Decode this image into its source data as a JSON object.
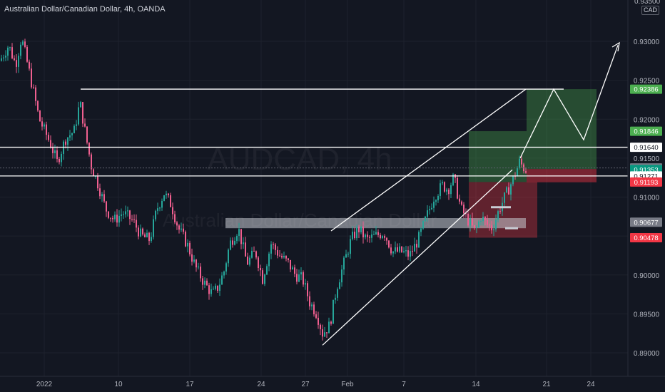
{
  "header": {
    "title": "Australian Dollar/Canadian Dollar, 4h, OANDA",
    "currency": "CAD",
    "top_cut_tick": "0.93500"
  },
  "watermark": {
    "symbol": "AUDCAD, 4h",
    "name": "Australian Dollar/Canadian Dollar"
  },
  "colors": {
    "background": "#131722",
    "up_candle": "#26a69a",
    "down_candle": "#ef5f8f",
    "lines": "#ffffff",
    "target_zone": "#4caf50",
    "stop_zone": "#f23645",
    "level_zone": "#c9ccd4",
    "badge_green": "#4caf50",
    "badge_red": "#f23645",
    "badge_gray": "#787b86",
    "badge_teal": "#089981"
  },
  "chart_data": {
    "type": "candlestick",
    "symbol": "AUDCAD",
    "timeframe": "4h",
    "ylim": [
      0.8875,
      0.935
    ],
    "y_ticks": [
      "0.89000",
      "0.89500",
      "0.90000",
      "0.90500",
      "0.91000",
      "0.91500",
      "0.92000",
      "0.92500",
      "0.93000"
    ],
    "x_ticks": [
      "2022",
      "10",
      "17",
      "24",
      "27",
      "Feb",
      "7",
      "14",
      "21",
      "24"
    ],
    "price_path": [
      [
        0,
        0.9275
      ],
      [
        12,
        0.9295
      ],
      [
        22,
        0.927
      ],
      [
        30,
        0.9305
      ],
      [
        40,
        0.9265
      ],
      [
        55,
        0.92
      ],
      [
        70,
        0.917
      ],
      [
        80,
        0.9145
      ],
      [
        92,
        0.9175
      ],
      [
        104,
        0.9185
      ],
      [
        112,
        0.9222
      ],
      [
        120,
        0.918
      ],
      [
        128,
        0.914
      ],
      [
        138,
        0.9115
      ],
      [
        148,
        0.9085
      ],
      [
        160,
        0.907
      ],
      [
        172,
        0.908
      ],
      [
        186,
        0.907
      ],
      [
        198,
        0.905
      ],
      [
        210,
        0.9045
      ],
      [
        220,
        0.9085
      ],
      [
        230,
        0.9105
      ],
      [
        240,
        0.909
      ],
      [
        250,
        0.906
      ],
      [
        262,
        0.904
      ],
      [
        274,
        0.901
      ],
      [
        286,
        0.899
      ],
      [
        298,
        0.8975
      ],
      [
        306,
        0.8985
      ],
      [
        314,
        0.9005
      ],
      [
        322,
        0.904
      ],
      [
        334,
        0.906
      ],
      [
        346,
        0.9015
      ],
      [
        358,
        0.903
      ],
      [
        368,
        0.8995
      ],
      [
        380,
        0.904
      ],
      [
        392,
        0.9025
      ],
      [
        404,
        0.9015
      ],
      [
        414,
        0.9
      ],
      [
        424,
        0.8995
      ],
      [
        434,
        0.8965
      ],
      [
        444,
        0.895
      ],
      [
        452,
        0.8925
      ],
      [
        462,
        0.8935
      ],
      [
        472,
        0.8985
      ],
      [
        482,
        0.9015
      ],
      [
        492,
        0.9045
      ],
      [
        502,
        0.906
      ],
      [
        514,
        0.9045
      ],
      [
        526,
        0.905
      ],
      [
        538,
        0.9055
      ],
      [
        550,
        0.903
      ],
      [
        562,
        0.903
      ],
      [
        574,
        0.9025
      ],
      [
        586,
        0.9045
      ],
      [
        598,
        0.9075
      ],
      [
        608,
        0.91
      ],
      [
        620,
        0.9115
      ],
      [
        628,
        0.911
      ],
      [
        636,
        0.9125
      ],
      [
        646,
        0.9085
      ],
      [
        656,
        0.907
      ],
      [
        666,
        0.9055
      ],
      [
        674,
        0.9075
      ],
      [
        682,
        0.9065
      ],
      [
        690,
        0.906
      ],
      [
        700,
        0.9085
      ],
      [
        710,
        0.9105
      ],
      [
        720,
        0.9125
      ],
      [
        728,
        0.9145
      ],
      [
        736,
        0.9135
      ]
    ],
    "horizontal_levels": [
      {
        "price": 0.92386,
        "x_from": 0.92386,
        "label": "0.92386"
      },
      {
        "price": 0.9164,
        "label": "0.91640"
      },
      {
        "price": 0.91271,
        "label": "0.91271"
      }
    ],
    "zone": {
      "label": "0.90677",
      "from": 0.906,
      "to": 0.9073
    },
    "long_position": {
      "target": 0.91846,
      "entry": 0.91193,
      "stop": 0.90478
    },
    "projection_target": 0.92386,
    "price_badges": [
      {
        "label": "0.92386",
        "price": 0.92386,
        "color": "green"
      },
      {
        "label": "0.91846",
        "price": 0.91846,
        "color": "green"
      },
      {
        "label": "0.91640",
        "price": 0.9164,
        "color": "white"
      },
      {
        "label": "0.91374",
        "price": 0.91374,
        "color": "gray"
      },
      {
        "label": "0.91353",
        "price": 0.91353,
        "color": "teal",
        "sub": "59:34"
      },
      {
        "label": "0.91271",
        "price": 0.91271,
        "color": "white"
      },
      {
        "label": "0.91193",
        "price": 0.91193,
        "color": "red"
      },
      {
        "label": "0.90677",
        "price": 0.90677,
        "color": "gray"
      },
      {
        "label": "0.90478",
        "price": 0.90478,
        "color": "red"
      }
    ]
  }
}
